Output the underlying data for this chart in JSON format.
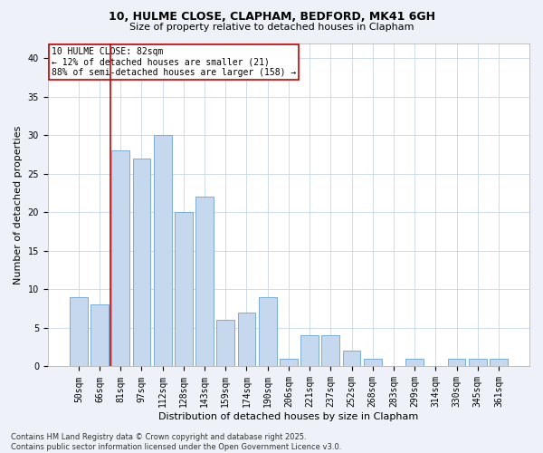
{
  "title1": "10, HULME CLOSE, CLAPHAM, BEDFORD, MK41 6GH",
  "title2": "Size of property relative to detached houses in Clapham",
  "xlabel": "Distribution of detached houses by size in Clapham",
  "ylabel": "Number of detached properties",
  "categories": [
    "50sqm",
    "66sqm",
    "81sqm",
    "97sqm",
    "112sqm",
    "128sqm",
    "143sqm",
    "159sqm",
    "174sqm",
    "190sqm",
    "206sqm",
    "221sqm",
    "237sqm",
    "252sqm",
    "268sqm",
    "283sqm",
    "299sqm",
    "314sqm",
    "330sqm",
    "345sqm",
    "361sqm"
  ],
  "values": [
    9,
    8,
    28,
    27,
    30,
    20,
    22,
    6,
    7,
    9,
    1,
    4,
    4,
    2,
    1,
    0,
    1,
    0,
    1,
    1,
    1
  ],
  "bar_color": "#c5d8ed",
  "bar_edge_color": "#7aadd4",
  "vline_x_index": 2,
  "vline_color": "#cc0000",
  "annotation_text": "10 HULME CLOSE: 82sqm\n← 12% of detached houses are smaller (21)\n88% of semi-detached houses are larger (158) →",
  "annotation_box_color": "#ffffff",
  "annotation_box_edge": "#cc0000",
  "ylim": [
    0,
    42
  ],
  "yticks": [
    0,
    5,
    10,
    15,
    20,
    25,
    30,
    35,
    40
  ],
  "footer": "Contains HM Land Registry data © Crown copyright and database right 2025.\nContains public sector information licensed under the Open Government Licence v3.0.",
  "bg_color": "#eef2f8",
  "plot_bg_color": "#ffffff",
  "grid_color": "#c8d4e8",
  "title1_fontsize": 9,
  "title2_fontsize": 8,
  "xlabel_fontsize": 8,
  "ylabel_fontsize": 8,
  "tick_fontsize": 7,
  "annotation_fontsize": 7,
  "footer_fontsize": 6
}
